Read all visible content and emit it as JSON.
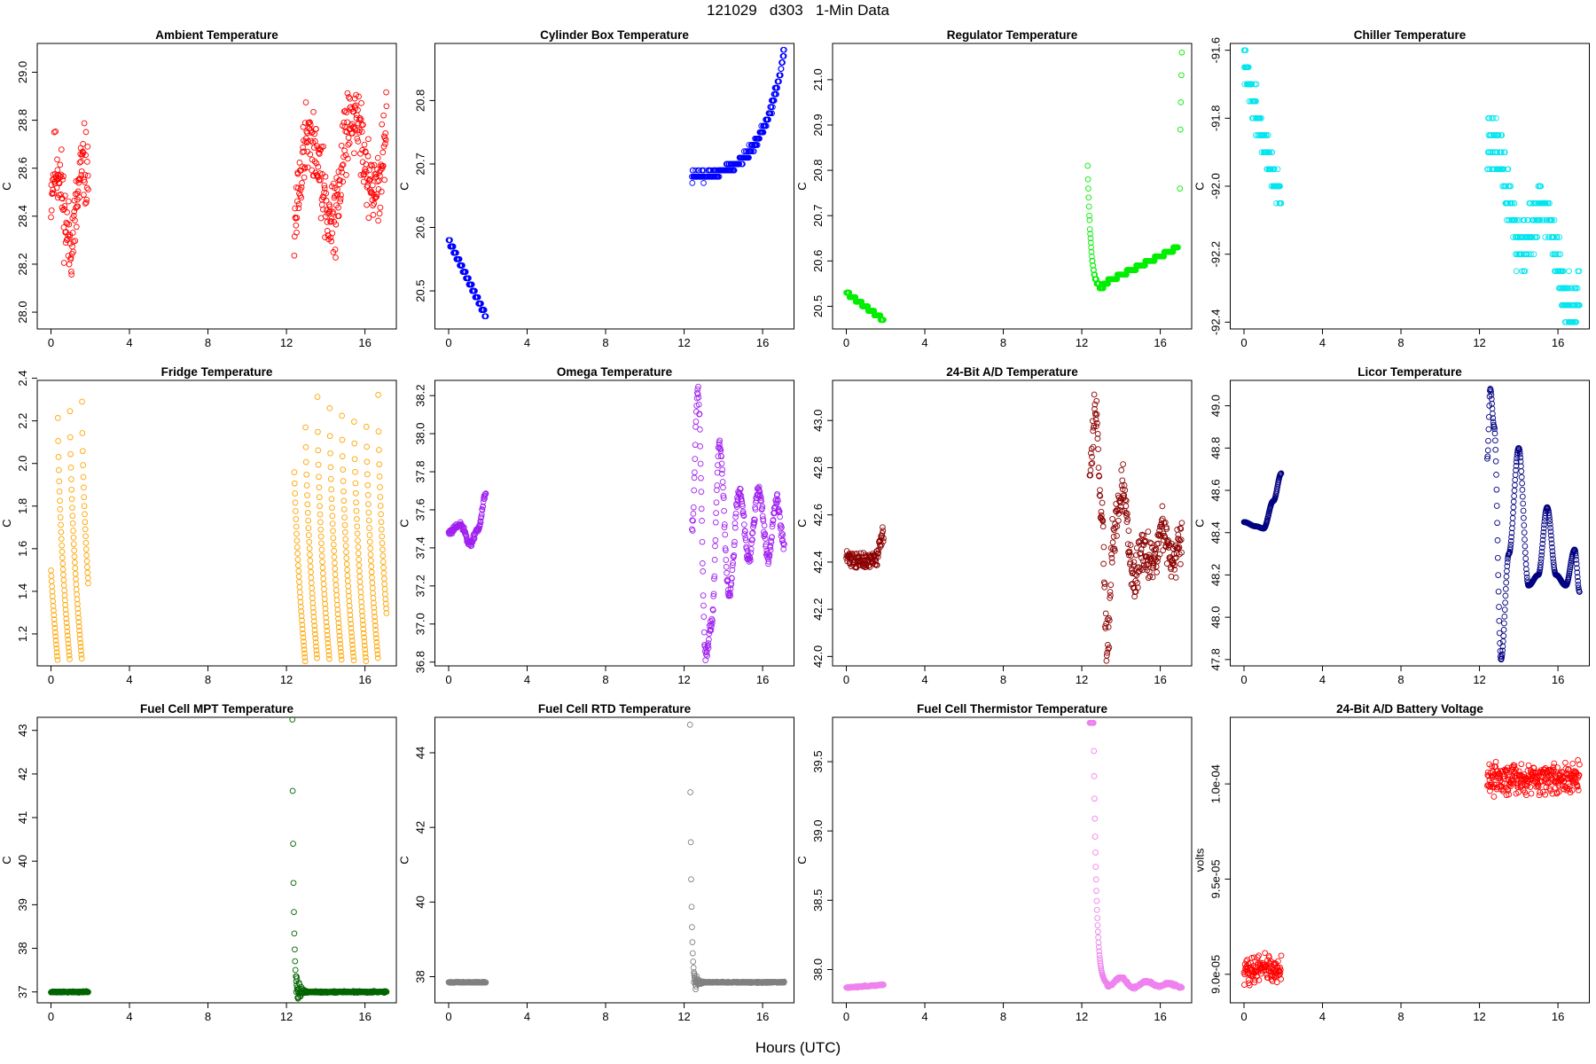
{
  "figure": {
    "title": "121029   d303   1-Min Data",
    "xlabel": "Hours (UTC)"
  },
  "chart_data": [
    {
      "type": "scatter",
      "title": "Ambient Temperature",
      "ylabel": "C",
      "color": "#ff0000",
      "xlim": [
        -0.7,
        17.6
      ],
      "ylim": [
        27.93,
        29.12
      ],
      "xticks": [
        0,
        4,
        8,
        12,
        16
      ],
      "yticks": [
        28.0,
        28.2,
        28.4,
        28.6,
        28.8,
        29.0
      ],
      "ytick_labels": [
        "28.0",
        "28.2",
        "28.4",
        "28.6",
        "28.8",
        "29.0"
      ],
      "series": [
        {
          "name": "Ambient Temperature",
          "segments": [
            {
              "x_start": 0.0,
              "x_end": 1.9,
              "n": 115,
              "shape": "noise",
              "y0": 28.45,
              "y1": 28.45,
              "wiggles": [
                {
                  "amp": 0.16,
                  "period": 1.4,
                  "phase": 0.3
                }
              ],
              "noise": 0.14,
              "seed": 11
            },
            {
              "x_start": 12.4,
              "x_end": 17.1,
              "n": 280,
              "shape": "noise",
              "y0": 28.5,
              "y1": 28.72,
              "wiggles": [
                {
                  "amp": 0.2,
                  "period": 2.2,
                  "phase": 1.6
                }
              ],
              "noise": 0.14,
              "seed": 12
            }
          ]
        }
      ]
    },
    {
      "type": "scatter",
      "title": "Cylinder Box Temperature",
      "ylabel": "C",
      "color": "#0000ff",
      "xlim": [
        -0.7,
        17.6
      ],
      "ylim": [
        20.44,
        20.89
      ],
      "xticks": [
        0,
        4,
        8,
        12,
        16
      ],
      "yticks": [
        20.5,
        20.6,
        20.7,
        20.8
      ],
      "ytick_labels": [
        "20.5",
        "20.6",
        "20.7",
        "20.8"
      ],
      "series": [
        {
          "name": "Cylinder Box Temperature",
          "segments": [
            {
              "x_start": 0.0,
              "x_end": 1.9,
              "n": 115,
              "shape": "linear",
              "y0": 20.58,
              "y1": 20.46,
              "step": 0.01,
              "noise": 0.0,
              "seed": 21
            },
            {
              "x_start": 12.4,
              "x_end": 17.1,
              "n": 280,
              "shape": "exp",
              "y0": 20.68,
              "y1": 20.88,
              "k": 4.2,
              "step": 0.01,
              "noise": 0.006,
              "seed": 22
            }
          ]
        }
      ]
    },
    {
      "type": "scatter",
      "title": "Regulator Temperature",
      "ylabel": "C",
      "color": "#00ee00",
      "xlim": [
        -0.7,
        17.6
      ],
      "ylim": [
        20.45,
        21.08
      ],
      "xticks": [
        0,
        4,
        8,
        12,
        16
      ],
      "yticks": [
        20.5,
        20.6,
        20.7,
        20.8,
        20.9,
        21.0
      ],
      "ytick_labels": [
        "20.5",
        "20.6",
        "20.7",
        "20.8",
        "20.9",
        "21.0"
      ],
      "series": [
        {
          "name": "Regulator Temperature",
          "segments": [
            {
              "x_start": 0.0,
              "x_end": 1.9,
              "n": 115,
              "shape": "linear",
              "y0": 20.53,
              "y1": 20.47,
              "step": 0.01,
              "noise": 0.0,
              "seed": 31
            },
            {
              "x_start": 12.3,
              "x_end": 13.1,
              "n": 50,
              "shape": "exp",
              "y0": 20.81,
              "y1": 20.54,
              "k": -5,
              "step": 0.01,
              "noise": 0.0,
              "seed": 32
            },
            {
              "x_start": 13.1,
              "x_end": 16.9,
              "n": 230,
              "shape": "linear",
              "y0": 20.55,
              "y1": 20.63,
              "step": 0.01,
              "noise": 0.0,
              "seed": 33
            },
            {
              "x_start": 17.0,
              "x_end": 17.1,
              "n": 5,
              "shape": "list",
              "ys": [
                20.76,
                20.89,
                20.95,
                21.01,
                21.06
              ]
            }
          ]
        }
      ]
    },
    {
      "type": "scatter",
      "title": "Chiller Temperature",
      "ylabel": "C",
      "color": "#00e5ee",
      "xlim": [
        -0.7,
        17.6
      ],
      "ylim": [
        -92.42,
        -91.58
      ],
      "xticks": [
        0,
        4,
        8,
        12,
        16
      ],
      "yticks": [
        -92.4,
        -92.2,
        -92.0,
        -91.8,
        -91.6
      ],
      "ytick_labels": [
        "-92.4",
        "-92.2",
        "-92.0",
        "-91.8",
        "-91.6"
      ],
      "series": [
        {
          "name": "Chiller Temperature",
          "segments": [
            {
              "x_start": 0.0,
              "x_end": 1.9,
              "n": 115,
              "shape": "linear",
              "y0": -91.65,
              "y1": -92.05,
              "step": 0.05,
              "noise": 0.05,
              "seed": 41
            },
            {
              "x_start": 12.4,
              "x_end": 17.1,
              "n": 280,
              "shape": "linear",
              "y0": -91.95,
              "y1": -92.3,
              "step": 0.05,
              "noise": 0.07,
              "wiggles": [
                {
                  "amp": 0.1,
                  "period": 2.5,
                  "phase": 0.8
                }
              ],
              "seed": 42
            }
          ]
        }
      ]
    },
    {
      "type": "scatter",
      "title": "Fridge Temperature",
      "ylabel": "C",
      "color": "#ffa500",
      "xlim": [
        -0.7,
        17.6
      ],
      "ylim": [
        1.05,
        2.39
      ],
      "xticks": [
        0,
        4,
        8,
        12,
        16
      ],
      "yticks": [
        1.2,
        1.4,
        1.6,
        1.8,
        2.0,
        2.2,
        2.4
      ],
      "ytick_labels": [
        "1.2",
        "1.4",
        "1.6",
        "1.8",
        "2.0",
        "2.2",
        "2.4"
      ],
      "series": [
        {
          "name": "Fridge Temperature",
          "segments": [
            {
              "x_start": 0.0,
              "x_end": 1.9,
              "n": 115,
              "shape": "sawtooth",
              "ymin": 1.07,
              "ymax": 2.37,
              "period": 0.62,
              "phase": 0.45,
              "noise": 0.0,
              "seed": 51
            },
            {
              "x_start": 12.4,
              "x_end": 17.1,
              "n": 280,
              "shape": "sawtooth",
              "ymin": 1.07,
              "ymax": 2.37,
              "period": 0.62,
              "phase": 0.1,
              "noise": 0.0,
              "seed": 52
            }
          ]
        }
      ]
    },
    {
      "type": "scatter",
      "title": "Omega Temperature",
      "ylabel": "C",
      "color": "#a020f0",
      "xlim": [
        -0.7,
        17.6
      ],
      "ylim": [
        36.78,
        38.28
      ],
      "xticks": [
        0,
        4,
        8,
        12,
        16
      ],
      "yticks": [
        36.8,
        37.0,
        37.2,
        37.4,
        37.6,
        37.8,
        38.0,
        38.2
      ],
      "ytick_labels": [
        "36.8",
        "37.0",
        "37.2",
        "37.4",
        "37.6",
        "37.8",
        "38.0",
        "38.2"
      ],
      "series": [
        {
          "name": "Omega Temperature",
          "segments": [
            {
              "x_start": 0.0,
              "x_end": 1.9,
              "n": 115,
              "shape": "poly",
              "xs": [
                0.0,
                0.6,
                1.1,
                1.5,
                1.9
              ],
              "ys": [
                37.48,
                37.52,
                37.42,
                37.5,
                37.68
              ],
              "noise": 0.015,
              "seed": 61
            },
            {
              "x_start": 12.4,
              "x_end": 17.1,
              "n": 280,
              "shape": "poly",
              "xs": [
                12.4,
                12.7,
                13.1,
                13.4,
                13.8,
                14.3,
                14.8,
                15.3,
                15.8,
                16.3,
                16.7,
                17.1
              ],
              "ys": [
                37.5,
                38.24,
                36.84,
                37.0,
                37.95,
                37.15,
                37.7,
                37.35,
                37.7,
                37.35,
                37.65,
                37.42
              ],
              "noise": 0.03,
              "seed": 62
            }
          ]
        }
      ]
    },
    {
      "type": "scatter",
      "title": "24-Bit A/D Temperature",
      "ylabel": "C",
      "color": "#8b0000",
      "xlim": [
        -0.7,
        17.6
      ],
      "ylim": [
        41.96,
        43.17
      ],
      "xticks": [
        0,
        4,
        8,
        12,
        16
      ],
      "yticks": [
        42.0,
        42.2,
        42.4,
        42.6,
        42.8,
        43.0
      ],
      "ytick_labels": [
        "42.0",
        "42.2",
        "42.4",
        "42.6",
        "42.8",
        "43.0"
      ],
      "series": [
        {
          "name": "24-Bit A/D Temperature",
          "segments": [
            {
              "x_start": 0.0,
              "x_end": 1.9,
              "n": 115,
              "shape": "poly",
              "xs": [
                0.0,
                1.0,
                1.5,
                1.9
              ],
              "ys": [
                42.42,
                42.4,
                42.42,
                42.52
              ],
              "noise": 0.03,
              "seed": 71
            },
            {
              "x_start": 12.4,
              "x_end": 17.1,
              "n": 280,
              "shape": "poly",
              "xs": [
                12.4,
                12.7,
                13.0,
                13.3,
                13.6,
                14.1,
                14.6,
                15.1,
                15.6,
                16.1,
                16.6,
                17.1
              ],
              "ys": [
                42.8,
                43.05,
                42.6,
                42.05,
                42.5,
                42.7,
                42.35,
                42.45,
                42.4,
                42.55,
                42.4,
                42.5
              ],
              "noise": 0.09,
              "seed": 72
            }
          ]
        }
      ]
    },
    {
      "type": "scatter",
      "title": "Licor Temperature",
      "ylabel": "C",
      "color": "#000080",
      "xlim": [
        -0.7,
        17.6
      ],
      "ylim": [
        47.77,
        49.12
      ],
      "xticks": [
        0,
        4,
        8,
        12,
        16
      ],
      "yticks": [
        47.8,
        48.0,
        48.2,
        48.4,
        48.6,
        48.8,
        49.0
      ],
      "ytick_labels": [
        "47.8",
        "48.0",
        "48.2",
        "48.4",
        "48.6",
        "48.8",
        "49.0"
      ],
      "series": [
        {
          "name": "Licor Temperature",
          "segments": [
            {
              "x_start": 0.0,
              "x_end": 1.9,
              "n": 115,
              "shape": "poly",
              "xs": [
                0.0,
                0.6,
                1.0,
                1.5,
                1.9
              ],
              "ys": [
                48.45,
                48.43,
                48.42,
                48.55,
                48.68
              ],
              "noise": 0.0,
              "seed": 81
            },
            {
              "x_start": 12.4,
              "x_end": 17.1,
              "n": 280,
              "shape": "poly",
              "xs": [
                12.4,
                12.55,
                12.75,
                13.1,
                13.5,
                14.0,
                14.5,
                15.0,
                15.45,
                15.9,
                16.4,
                16.85,
                17.1
              ],
              "ys": [
                48.75,
                49.08,
                48.9,
                47.8,
                48.3,
                48.8,
                48.15,
                48.2,
                48.52,
                48.2,
                48.15,
                48.32,
                48.12
              ],
              "noise": 0.0,
              "seed": 82
            }
          ]
        }
      ]
    },
    {
      "type": "scatter",
      "title": "Fuel Cell MPT Temperature",
      "ylabel": "C",
      "color": "#006400",
      "xlim": [
        -0.7,
        17.6
      ],
      "ylim": [
        36.75,
        43.3
      ],
      "xticks": [
        0,
        4,
        8,
        12,
        16
      ],
      "yticks": [
        37,
        38,
        39,
        40,
        41,
        42,
        43
      ],
      "ytick_labels": [
        "37",
        "38",
        "39",
        "40",
        "41",
        "42",
        "43"
      ],
      "series": [
        {
          "name": "Fuel Cell MPT Temperature",
          "segments": [
            {
              "x_start": 0.0,
              "x_end": 1.9,
              "n": 115,
              "shape": "flat",
              "y0": 37.0,
              "noise": 0.012,
              "seed": 91
            },
            {
              "x_start": 12.3,
              "x_end": 12.6,
              "n": 16,
              "shape": "exp",
              "y0": 43.25,
              "y1": 37.0,
              "k": -4.5,
              "noise": 0.0,
              "seed": 92
            },
            {
              "x_start": 12.5,
              "x_end": 13.2,
              "n": 40,
              "shape": "ring",
              "y0": 37.0,
              "amp": 0.5,
              "decay": 6.0,
              "period": 0.12,
              "seed": 93
            },
            {
              "x_start": 13.2,
              "x_end": 17.1,
              "n": 230,
              "shape": "flat",
              "y0": 37.0,
              "noise": 0.015,
              "seed": 94
            }
          ]
        }
      ]
    },
    {
      "type": "scatter",
      "title": "Fuel Cell RTD Temperature",
      "ylabel": "C",
      "color": "#808080",
      "xlim": [
        -0.7,
        17.6
      ],
      "ylim": [
        37.3,
        44.95
      ],
      "xticks": [
        0,
        4,
        8,
        12,
        16
      ],
      "yticks": [
        38,
        40,
        42,
        44
      ],
      "ytick_labels": [
        "38",
        "40",
        "42",
        "44"
      ],
      "series": [
        {
          "name": "Fuel Cell RTD Temperature",
          "segments": [
            {
              "x_start": 0.0,
              "x_end": 1.9,
              "n": 115,
              "shape": "flat",
              "y0": 37.85,
              "noise": 0.01,
              "seed": 101
            },
            {
              "x_start": 12.3,
              "x_end": 12.6,
              "n": 16,
              "shape": "exp",
              "y0": 44.75,
              "y1": 37.85,
              "k": -4.5,
              "noise": 0.0,
              "seed": 102
            },
            {
              "x_start": 12.5,
              "x_end": 13.2,
              "n": 40,
              "shape": "ring",
              "y0": 37.85,
              "amp": 0.35,
              "decay": 6.0,
              "period": 0.12,
              "seed": 103
            },
            {
              "x_start": 13.2,
              "x_end": 17.1,
              "n": 230,
              "shape": "flat",
              "y0": 37.85,
              "noise": 0.012,
              "seed": 104
            }
          ]
        }
      ]
    },
    {
      "type": "scatter",
      "title": "Fuel Cell Thermistor Temperature",
      "ylabel": "C",
      "color": "#ee82ee",
      "xlim": [
        -0.7,
        17.6
      ],
      "ylim": [
        37.76,
        39.82
      ],
      "xticks": [
        0,
        4,
        8,
        12,
        16
      ],
      "yticks": [
        38.0,
        38.5,
        39.0,
        39.5
      ],
      "ytick_labels": [
        "38.0",
        "38.5",
        "39.0",
        "39.5"
      ],
      "series": [
        {
          "name": "Fuel Cell Thermistor Temperature",
          "segments": [
            {
              "x_start": 0.0,
              "x_end": 1.9,
              "n": 115,
              "shape": "linear",
              "y0": 37.87,
              "y1": 37.89,
              "noise": 0.004,
              "seed": 111
            },
            {
              "x_start": 12.4,
              "x_end": 12.6,
              "n": 12,
              "shape": "flat",
              "y0": 39.78,
              "noise": 0.0,
              "seed": 112
            },
            {
              "x_start": 12.6,
              "x_end": 13.3,
              "n": 45,
              "shape": "exp",
              "y0": 39.78,
              "y1": 37.9,
              "k": -5,
              "noise": 0.0,
              "seed": 113
            },
            {
              "x_start": 13.3,
              "x_end": 17.1,
              "n": 225,
              "shape": "poly",
              "xs": [
                13.3,
                14.0,
                14.6,
                15.3,
                15.9,
                16.4,
                17.1
              ],
              "ys": [
                37.88,
                37.94,
                37.87,
                37.91,
                37.88,
                37.9,
                37.87
              ],
              "noise": 0.008,
              "seed": 114
            }
          ]
        }
      ]
    },
    {
      "type": "scatter",
      "title": "24-Bit A/D Battery Voltage",
      "ylabel": "volts",
      "color": "#ff0000",
      "xlim": [
        -0.7,
        17.6
      ],
      "ylim": [
        8.85e-05,
        0.0001035
      ],
      "xticks": [
        0,
        4,
        8,
        12,
        16
      ],
      "yticks": [
        9e-05,
        9.5e-05,
        0.0001
      ],
      "ytick_labels": [
        "9.0e-05",
        "9.5e-05",
        "1.0e-04"
      ],
      "series": [
        {
          "name": "24-Bit A/D Battery Voltage",
          "segments": [
            {
              "x_start": 0.0,
              "x_end": 1.9,
              "n": 115,
              "shape": "noise",
              "y0": 9.03e-05,
              "y1": 9.03e-05,
              "noise": 6e-07,
              "seed": 121
            },
            {
              "x_start": 12.4,
              "x_end": 17.1,
              "n": 280,
              "shape": "noise",
              "y0": 0.0001003,
              "y1": 0.0001003,
              "noise": 6.5e-07,
              "seed": 122
            }
          ]
        }
      ]
    }
  ]
}
